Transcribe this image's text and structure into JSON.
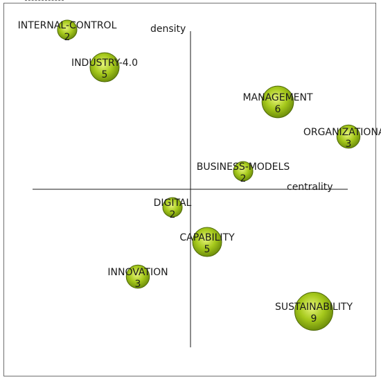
{
  "chart_data": {
    "type": "scatter",
    "subtype": "strategic-diagram-bubble",
    "xlabel": "centrality",
    "ylabel": "density",
    "bubble_color": "#9ac21a",
    "bubble_edge_color": "#4f6a08",
    "points": [
      {
        "name": "INTERNAL-CONTROL",
        "count": "2",
        "x": -8.9,
        "y": 11.5,
        "size": 2
      },
      {
        "name": "INDUSTRY-4.0",
        "count": "5",
        "x": -6.2,
        "y": 8.8,
        "size": 5
      },
      {
        "name": "MANAGEMENT",
        "count": "6",
        "x": 6.3,
        "y": 6.3,
        "size": 6
      },
      {
        "name": "ORGANIZATIONAL-",
        "count": "3",
        "x": 11.4,
        "y": 3.8,
        "size": 3
      },
      {
        "name": "BUSINESS-MODELS",
        "count": "2",
        "x": 3.8,
        "y": 1.3,
        "size": 2
      },
      {
        "name": "DIGITAL",
        "count": "2",
        "x": -1.3,
        "y": -1.3,
        "size": 2
      },
      {
        "name": "CAPABILITY",
        "count": "5",
        "x": 1.2,
        "y": -3.8,
        "size": 5
      },
      {
        "name": "INNOVATION",
        "count": "3",
        "x": -3.8,
        "y": -6.3,
        "size": 3
      },
      {
        "name": "SUSTAINABILITY",
        "count": "9",
        "x": 8.9,
        "y": -8.8,
        "size": 9
      }
    ]
  }
}
